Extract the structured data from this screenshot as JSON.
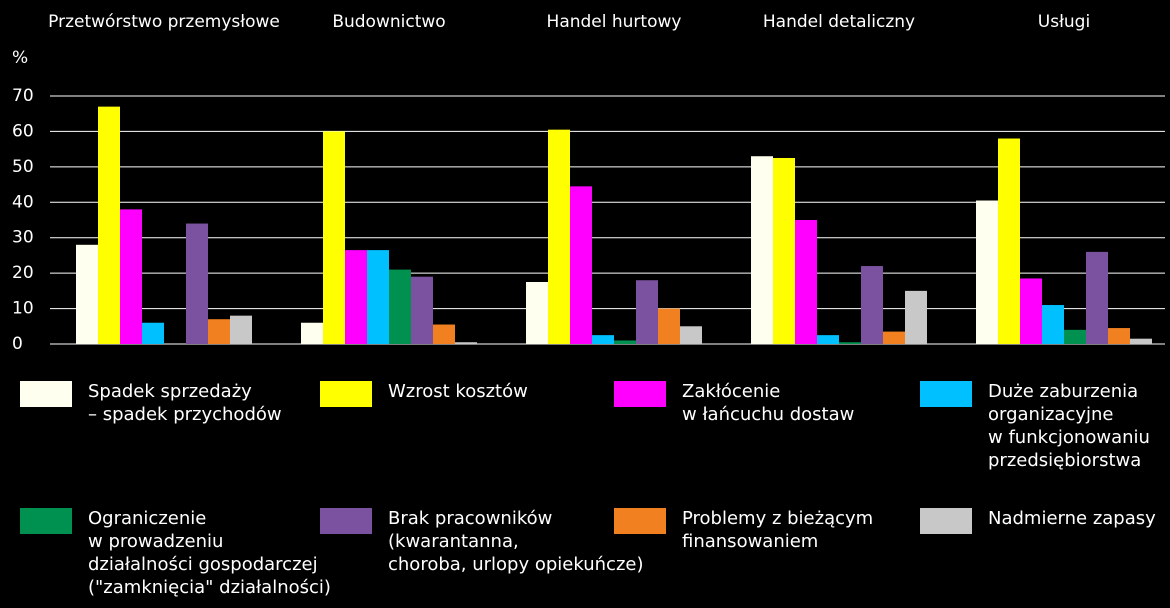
{
  "chart_data": {
    "type": "bar",
    "y_label": "%",
    "categories": [
      "Przetwórstwo przemysłowe",
      "Budownictwo",
      "Handel hurtowy",
      "Handel detaliczny",
      "Usługi"
    ],
    "series": [
      {
        "name": "Spadek sprzedaży\n– spadek przychodów",
        "color": "#fffff0",
        "values": [
          28,
          6,
          17.5,
          53,
          40.5
        ]
      },
      {
        "name": "Wzrost kosztów",
        "color": "#ffff00",
        "values": [
          67,
          60,
          60.5,
          52.5,
          58
        ]
      },
      {
        "name": "Zakłócenie\nw łańcuchu dostaw",
        "color": "#ff00ff",
        "values": [
          38,
          26.5,
          44.5,
          35,
          18.5
        ]
      },
      {
        "name": "Duże zaburzenia\norganizacyjne\nw funkcjonowaniu\nprzedsiębiorstwa",
        "color": "#00c0ff",
        "values": [
          6,
          26.5,
          2.5,
          2.5,
          11
        ]
      },
      {
        "name": "Ograniczenie\nw prowadzeniu\ndziałalności gospodarczej\n(\"zamknięcia\" działalności)",
        "color": "#009050",
        "values": [
          0,
          21,
          1,
          0.5,
          4
        ]
      },
      {
        "name": "Brak pracowników\n(kwarantanna,\nchoroba, urlopy opiekuńcze)",
        "color": "#7b52a0",
        "values": [
          34,
          19,
          18,
          22,
          26
        ]
      },
      {
        "name": "Problemy z bieżącym\nfinansowaniem",
        "color": "#f08020",
        "values": [
          7,
          5.5,
          10,
          3.5,
          4.5
        ]
      },
      {
        "name": "Nadmierne zapasy",
        "color": "#c8c8c8",
        "values": [
          8,
          0.5,
          5,
          15,
          1.5
        ]
      }
    ],
    "ylim": [
      0,
      70
    ],
    "yticks": [
      0,
      10,
      20,
      30,
      40,
      50,
      60,
      70
    ],
    "grid": true
  }
}
